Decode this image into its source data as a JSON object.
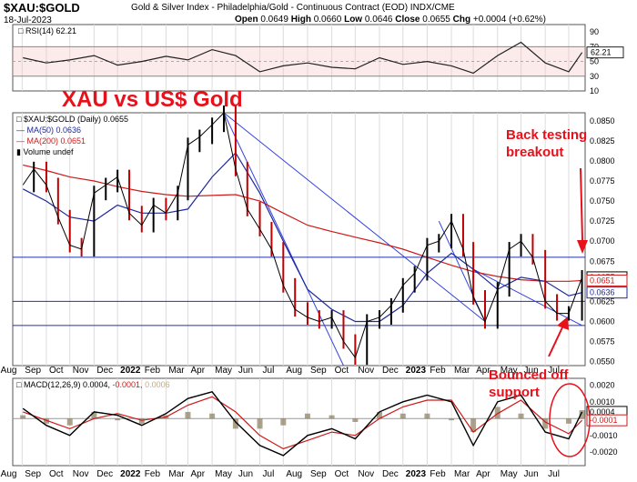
{
  "header": {
    "ticker": "$XAU:$GOLD",
    "description": "Gold & Silver Index - Philadelphia/Gold - Continuous Contract (EOD)  INDX/CME",
    "date": "18-Jul-2023",
    "open_label": "Open",
    "open": "0.0649",
    "high_label": "High",
    "high": "0.0660",
    "low_label": "Low",
    "low": "0.0646",
    "close_label": "Close",
    "close": "0.0655",
    "chg_label": "Chg",
    "chg": "+0.0004 (+0.62%)"
  },
  "annotations": {
    "title": "XAU vs US$ Gold",
    "back_testing_1": "Back testing",
    "back_testing_2": "breakout",
    "bounced_1": "Bounced off",
    "bounced_2": "support"
  },
  "legends": {
    "rsi": "RSI(14) 62.21",
    "price": "$XAU:$GOLD (Daily) 0.0655",
    "ma50": "MA(50) 0.0636",
    "ma200": "MA(200) 0.0651",
    "volume": "Volume undef",
    "macd_main": "MACD(12,26,9) 0.0004,",
    "macd_signal": "-0.0001,",
    "macd_hist": "0.0006"
  },
  "colors": {
    "price": "#000000",
    "ma50": "#1f2a9c",
    "ma200": "#cc1a1a",
    "trendline": "#3344dd",
    "annotation": "#e8101a",
    "hist": "#8a7a5a",
    "rsi_band": "#f7c6c6"
  },
  "chart_data": [
    {
      "type": "line",
      "title": "RSI(14)",
      "ylim": [
        10,
        100
      ],
      "y_ticks": [
        10,
        30,
        50,
        70,
        90
      ],
      "levels": [
        30,
        70
      ],
      "last_value": 62.21,
      "series": [
        {
          "name": "RSI(14)",
          "x": [
            "2021-08-02",
            "2021-09-01",
            "2021-10-01",
            "2021-11-01",
            "2021-12-01",
            "2022-01-01",
            "2022-02-01",
            "2022-03-01",
            "2022-04-01",
            "2022-05-01",
            "2022-06-01",
            "2022-07-01",
            "2022-08-01",
            "2022-09-01",
            "2022-10-01",
            "2022-11-01",
            "2022-12-01",
            "2023-01-01",
            "2023-02-01",
            "2023-03-01",
            "2023-04-01",
            "2023-05-01",
            "2023-06-01",
            "2023-07-01",
            "2023-07-18"
          ],
          "values": [
            55,
            48,
            52,
            58,
            45,
            50,
            57,
            52,
            66,
            58,
            36,
            44,
            48,
            42,
            40,
            55,
            46,
            50,
            44,
            34,
            58,
            76,
            48,
            36,
            62.21
          ]
        }
      ]
    },
    {
      "type": "line",
      "title": "$XAU:$GOLD (Daily)",
      "ylim": [
        0.0545,
        0.086
      ],
      "y_ticks": [
        0.055,
        0.0575,
        0.06,
        0.0625,
        0.065,
        0.0675,
        0.07,
        0.0725,
        0.075,
        0.0775,
        0.08,
        0.0825,
        0.085
      ],
      "x_labels": [
        "Aug",
        "Sep",
        "Oct",
        "Nov",
        "Dec",
        "2022",
        "Feb",
        "Mar",
        "Apr",
        "May",
        "Jun",
        "Jul",
        "Aug",
        "Sep",
        "Oct",
        "Nov",
        "Dec",
        "2023",
        "Feb",
        "Mar",
        "Apr",
        "May",
        "Jun",
        "Jul"
      ],
      "horizontal_levels": [
        0.068,
        0.0625,
        0.0595
      ],
      "price_tags": {
        "close": 0.0655,
        "ma200": 0.0651,
        "ma50": 0.0636
      },
      "series": [
        {
          "name": "$XAU:$GOLD",
          "x": [
            "2021-08-02",
            "2021-08-16",
            "2021-09-01",
            "2021-09-16",
            "2021-10-01",
            "2021-10-16",
            "2021-11-01",
            "2021-11-16",
            "2021-12-01",
            "2021-12-16",
            "2022-01-01",
            "2022-01-16",
            "2022-02-01",
            "2022-02-16",
            "2022-03-01",
            "2022-03-16",
            "2022-04-01",
            "2022-04-16",
            "2022-05-01",
            "2022-05-16",
            "2022-06-01",
            "2022-06-16",
            "2022-07-01",
            "2022-07-16",
            "2022-08-01",
            "2022-08-16",
            "2022-09-01",
            "2022-09-16",
            "2022-10-01",
            "2022-10-16",
            "2022-11-01",
            "2022-11-16",
            "2022-12-01",
            "2022-12-16",
            "2023-01-01",
            "2023-01-16",
            "2023-02-01",
            "2023-02-16",
            "2023-03-01",
            "2023-03-16",
            "2023-04-01",
            "2023-04-16",
            "2023-05-01",
            "2023-05-16",
            "2023-06-01",
            "2023-06-16",
            "2023-07-01",
            "2023-07-18"
          ],
          "values": [
            0.077,
            0.079,
            0.077,
            0.073,
            0.0695,
            0.069,
            0.076,
            0.077,
            0.078,
            0.0735,
            0.072,
            0.0745,
            0.0735,
            0.076,
            0.082,
            0.083,
            0.0845,
            0.086,
            0.079,
            0.074,
            0.0715,
            0.069,
            0.0645,
            0.0615,
            0.0605,
            0.06,
            0.0605,
            0.0575,
            0.0555,
            0.06,
            0.0605,
            0.062,
            0.0645,
            0.066,
            0.0695,
            0.07,
            0.0725,
            0.069,
            0.063,
            0.06,
            0.064,
            0.069,
            0.07,
            0.068,
            0.0625,
            0.061,
            0.061,
            0.0655
          ]
        },
        {
          "name": "MA(50)",
          "x": [
            "2021-08-02",
            "2021-09-01",
            "2021-10-01",
            "2021-11-01",
            "2021-12-01",
            "2022-01-01",
            "2022-02-01",
            "2022-03-01",
            "2022-04-01",
            "2022-05-01",
            "2022-06-01",
            "2022-07-01",
            "2022-08-01",
            "2022-09-01",
            "2022-10-01",
            "2022-11-01",
            "2022-12-01",
            "2023-01-01",
            "2023-02-01",
            "2023-03-01",
            "2023-04-01",
            "2023-05-01",
            "2023-06-01",
            "2023-07-01",
            "2023-07-18"
          ],
          "values": [
            0.0765,
            0.075,
            0.073,
            0.0725,
            0.0745,
            0.0735,
            0.0735,
            0.074,
            0.078,
            0.081,
            0.076,
            0.07,
            0.064,
            0.0615,
            0.06,
            0.06,
            0.062,
            0.066,
            0.0685,
            0.0665,
            0.064,
            0.0655,
            0.065,
            0.0632,
            0.0636
          ]
        },
        {
          "name": "MA(200)",
          "x": [
            "2021-08-02",
            "2021-09-01",
            "2021-10-01",
            "2021-11-01",
            "2021-12-01",
            "2022-01-01",
            "2022-02-01",
            "2022-03-01",
            "2022-04-01",
            "2022-05-01",
            "2022-06-01",
            "2022-07-01",
            "2022-08-01",
            "2022-09-01",
            "2022-10-01",
            "2022-11-01",
            "2022-12-01",
            "2023-01-01",
            "2023-02-01",
            "2023-03-01",
            "2023-04-01",
            "2023-05-01",
            "2023-06-01",
            "2023-07-01",
            "2023-07-18"
          ],
          "values": [
            0.0795,
            0.0788,
            0.078,
            0.0775,
            0.0768,
            0.0762,
            0.0758,
            0.0756,
            0.0757,
            0.0758,
            0.075,
            0.0735,
            0.072,
            0.0712,
            0.0705,
            0.0698,
            0.069,
            0.068,
            0.067,
            0.0662,
            0.0656,
            0.0652,
            0.065,
            0.065,
            0.0651
          ]
        }
      ],
      "trendlines": [
        {
          "from": [
            "2022-04-16",
            0.086
          ],
          "to": [
            "2023-03-16",
            0.06
          ]
        },
        {
          "from": [
            "2022-04-16",
            0.086
          ],
          "to": [
            "2022-09-16",
            0.0545
          ]
        },
        {
          "from": [
            "2023-01-16",
            0.0725
          ],
          "to": [
            "2023-03-16",
            0.06
          ]
        },
        {
          "from": [
            "2023-03-01",
            0.0665
          ],
          "to": [
            "2023-07-18",
            0.0595
          ]
        }
      ]
    },
    {
      "type": "line",
      "title": "MACD(12,26,9)",
      "ylim": [
        -0.0028,
        0.0024
      ],
      "y_ticks": [
        -0.002,
        -0.001,
        0.0,
        0.001,
        0.002
      ],
      "y_tick_labels": [
        "-0.0020",
        "-0.0010",
        "",
        "0.0010",
        "0.0020"
      ],
      "price_tags": {
        "macd": 0.0004,
        "signal": -0.0001,
        "histogram": 0.0006
      },
      "series": [
        {
          "name": "MACD",
          "x": [
            "2021-08-02",
            "2021-09-01",
            "2021-10-01",
            "2021-11-01",
            "2021-12-01",
            "2022-01-01",
            "2022-02-01",
            "2022-03-01",
            "2022-04-01",
            "2022-05-01",
            "2022-06-01",
            "2022-07-01",
            "2022-08-01",
            "2022-09-01",
            "2022-10-01",
            "2022-11-01",
            "2022-12-01",
            "2023-01-01",
            "2023-02-01",
            "2023-03-01",
            "2023-04-01",
            "2023-05-01",
            "2023-06-01",
            "2023-07-01",
            "2023-07-18"
          ],
          "values": [
            0.0006,
            -0.0004,
            -0.001,
            0.0004,
            0.0002,
            -0.0004,
            0.0003,
            0.0012,
            0.0016,
            -0.0002,
            -0.0016,
            -0.0022,
            -0.001,
            -0.0006,
            -0.0012,
            0.0004,
            0.001,
            0.0014,
            0.001,
            -0.0016,
            0.001,
            0.0014,
            -0.0008,
            -0.0012,
            0.0004
          ]
        },
        {
          "name": "Signal",
          "x": [
            "2021-08-02",
            "2021-09-01",
            "2021-10-01",
            "2021-11-01",
            "2021-12-01",
            "2022-01-01",
            "2022-02-01",
            "2022-03-01",
            "2022-04-01",
            "2022-05-01",
            "2022-06-01",
            "2022-07-01",
            "2022-08-01",
            "2022-09-01",
            "2022-10-01",
            "2022-11-01",
            "2022-12-01",
            "2023-01-01",
            "2023-02-01",
            "2023-03-01",
            "2023-04-01",
            "2023-05-01",
            "2023-06-01",
            "2023-07-01",
            "2023-07-18"
          ],
          "values": [
            0.0004,
            -0.0001,
            -0.0006,
            0.0,
            0.0003,
            -0.0001,
            0.0001,
            0.0008,
            0.0013,
            0.0004,
            -0.001,
            -0.0018,
            -0.0013,
            -0.0008,
            -0.001,
            0.0,
            0.0007,
            0.0011,
            0.0011,
            -0.0008,
            0.0003,
            0.0011,
            -0.0002,
            -0.0009,
            -0.0001
          ]
        }
      ]
    }
  ]
}
